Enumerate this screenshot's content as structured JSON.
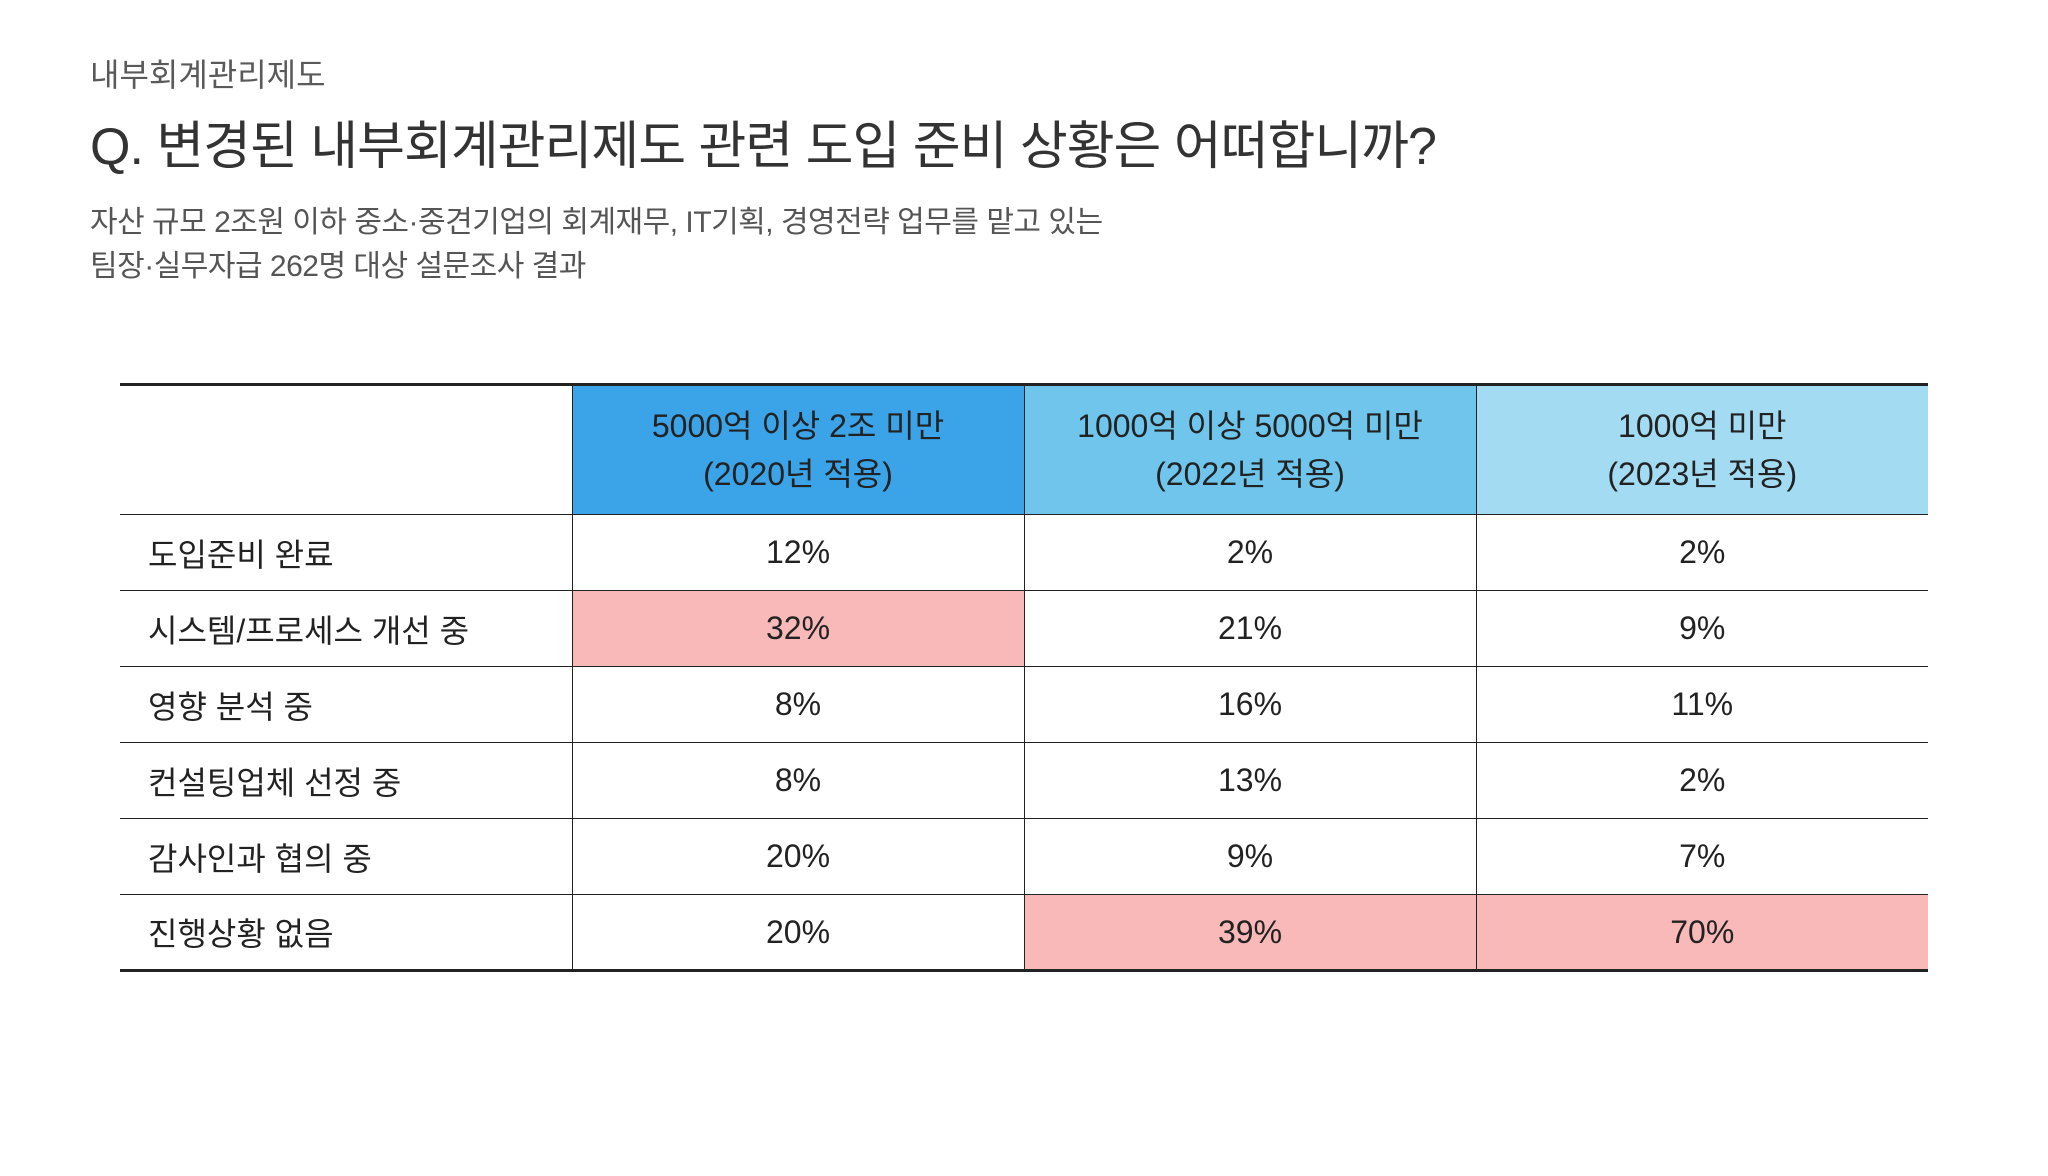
{
  "eyebrow": "내부회계관리제도",
  "question": "Q. 변경된 내부회계관리제도 관련 도입 준비 상황은 어떠합니까?",
  "subtitle_line1": "자산 규모 2조원 이하 중소·중견기업의 회계재무, IT기획, 경영전략 업무를 맡고 있는",
  "subtitle_line2": "팀장·실무자급 262명 대상 설문조사 결과",
  "table": {
    "columns": [
      {
        "line1": "5000억 이상 2조 미만",
        "line2": "(2020년 적용)",
        "bg": "#3ba3e8"
      },
      {
        "line1": "1000억 이상 5000억 미만",
        "line2": "(2022년 적용)",
        "bg": "#6fc5ec"
      },
      {
        "line1": "1000억 미만",
        "line2": "(2023년 적용)",
        "bg": "#a3dbf3"
      }
    ],
    "rows": [
      {
        "label": "도입준비 완료",
        "cells": [
          {
            "value": "12%",
            "highlight": false
          },
          {
            "value": "2%",
            "highlight": false
          },
          {
            "value": "2%",
            "highlight": false
          }
        ]
      },
      {
        "label": "시스템/프로세스 개선 중",
        "cells": [
          {
            "value": "32%",
            "highlight": true
          },
          {
            "value": "21%",
            "highlight": false
          },
          {
            "value": "9%",
            "highlight": false
          }
        ]
      },
      {
        "label": "영향 분석 중",
        "cells": [
          {
            "value": "8%",
            "highlight": false
          },
          {
            "value": "16%",
            "highlight": false
          },
          {
            "value": "11%",
            "highlight": false
          }
        ]
      },
      {
        "label": "컨설팅업체 선정 중",
        "cells": [
          {
            "value": "8%",
            "highlight": false
          },
          {
            "value": "13%",
            "highlight": false
          },
          {
            "value": "2%",
            "highlight": false
          }
        ]
      },
      {
        "label": "감사인과 협의 중",
        "cells": [
          {
            "value": "20%",
            "highlight": false
          },
          {
            "value": "9%",
            "highlight": false
          },
          {
            "value": "7%",
            "highlight": false
          }
        ]
      },
      {
        "label": "진행상황 없음",
        "cells": [
          {
            "value": "20%",
            "highlight": false
          },
          {
            "value": "39%",
            "highlight": true
          },
          {
            "value": "70%",
            "highlight": true
          }
        ]
      }
    ],
    "highlight_color": "#f9b9b9",
    "default_cell_bg": "#ffffff"
  }
}
